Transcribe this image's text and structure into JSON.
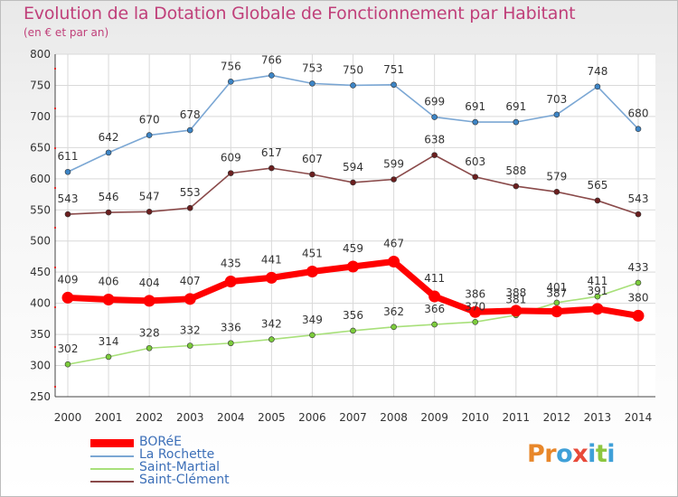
{
  "title": "Evolution de la Dotation Globale de Fonctionnement par Habitant",
  "subtitle": "(en € et par an)",
  "logo": {
    "letters": [
      "P",
      "r",
      "o",
      "x",
      "i",
      "t",
      "i"
    ],
    "colors": [
      "#e8872a",
      "#e8872a",
      "#3fa0d8",
      "#e84a3a",
      "#3fa0d8",
      "#8cc63f",
      "#3fa0d8"
    ]
  },
  "chart_data": {
    "type": "line",
    "x": [
      "2000",
      "2001",
      "2002",
      "2003",
      "2004",
      "2005",
      "2006",
      "2007",
      "2008",
      "2009",
      "2010",
      "2011",
      "2012",
      "2013",
      "2014"
    ],
    "ylim": [
      250,
      800
    ],
    "yticks": [
      250,
      300,
      350,
      400,
      450,
      500,
      550,
      600,
      650,
      700,
      750,
      800
    ],
    "grid": true,
    "legend_position": "bottom-left",
    "series": [
      {
        "name": "La Rochette",
        "color": "#7ba7d4",
        "marker": "#3d85c6",
        "values": [
          611,
          642,
          670,
          678,
          756,
          766,
          753,
          750,
          751,
          699,
          691,
          691,
          703,
          748,
          680
        ]
      },
      {
        "name": "Saint-Clément",
        "color": "#8a4a4a",
        "marker": "#6b1f1f",
        "values": [
          543,
          546,
          547,
          553,
          609,
          617,
          607,
          594,
          599,
          638,
          603,
          588,
          579,
          565,
          543
        ]
      },
      {
        "name": "Saint-Martial",
        "color": "#a8e07a",
        "marker": "#7ccc3c",
        "values": [
          302,
          314,
          328,
          332,
          336,
          342,
          349,
          356,
          362,
          366,
          370,
          381,
          401,
          411,
          433
        ]
      },
      {
        "name": "BORéE",
        "color": "#ff0000",
        "marker": "#ff0000",
        "values": [
          409,
          406,
          404,
          407,
          435,
          441,
          451,
          459,
          467,
          411,
          386,
          388,
          387,
          391,
          380
        ]
      }
    ],
    "value_labels": [
      [
        "611",
        "642",
        "670",
        "678",
        "756",
        "766",
        "753",
        "750",
        "751",
        "699",
        "691",
        "691",
        "703",
        "748",
        "680"
      ],
      [
        "543",
        "546",
        "547",
        "553",
        "609",
        "617",
        "607",
        "594",
        "599",
        "638",
        "603",
        "588",
        "579",
        "565",
        "543"
      ],
      [
        "302",
        "314",
        "328",
        "332",
        "336",
        "342",
        "349",
        "356",
        "362",
        "366",
        "370",
        "381",
        "401",
        "411",
        "433"
      ],
      [
        "409",
        "406",
        "404",
        "407",
        "435",
        "441",
        "451",
        "459",
        "467",
        "411",
        "386",
        "388",
        "387",
        "391",
        "380"
      ]
    ],
    "legend_order": [
      "BORéE",
      "La Rochette",
      "Saint-Martial",
      "Saint-Clément"
    ]
  }
}
